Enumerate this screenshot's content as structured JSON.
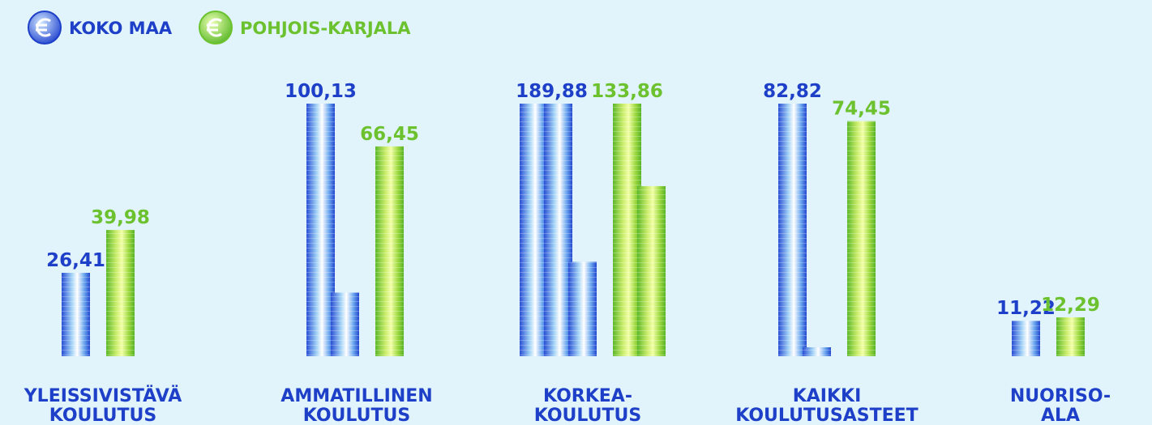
{
  "chart_data": {
    "type": "coin-stack",
    "categories": [
      [
        "YLEISSIVISTÄVÄ",
        "KOULUTUS"
      ],
      [
        "AMMATILLINEN",
        "KOULUTUS"
      ],
      [
        "KORKEA-",
        "KOULUTUS"
      ],
      [
        "KAIKKI",
        "KOULUTUSASTEET"
      ],
      [
        "NUORISO-",
        "ALA"
      ]
    ],
    "series": [
      {
        "name": "KOKO MAA",
        "color": "#1e40c8",
        "values": [
          26.41,
          100.13,
          189.88,
          82.82,
          11.22
        ],
        "value_labels": [
          "26,41",
          "100,13",
          "189,88",
          "82,82",
          "11,22"
        ]
      },
      {
        "name": "POHJOIS-KARJALA",
        "color": "#6cc22e",
        "values": [
          39.98,
          66.45,
          133.86,
          74.45,
          12.29
        ],
        "value_labels": [
          "39,98",
          "66,45",
          "133,86",
          "74,45",
          "12,29"
        ]
      }
    ]
  }
}
